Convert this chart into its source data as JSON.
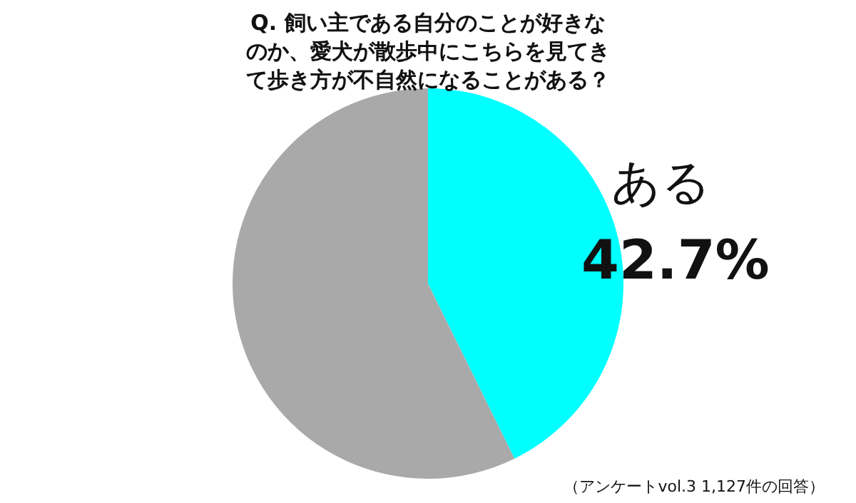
{
  "chart_data": {
    "type": "pie",
    "title": "Q. 飼い主である自分のことが好きなのか、愛犬が散歩中にこちらを見てきて歩き方が不自然になることがある？",
    "categories": [
      "ある",
      null
    ],
    "values": [
      42.7,
      57.3
    ],
    "value_labels": [
      "42.7%",
      null
    ],
    "colors": [
      "#00ffff",
      "#a9a9a9"
    ],
    "legend": false,
    "annotations": [
      "（アンケートvol.3 1,127件の回答）"
    ]
  }
}
